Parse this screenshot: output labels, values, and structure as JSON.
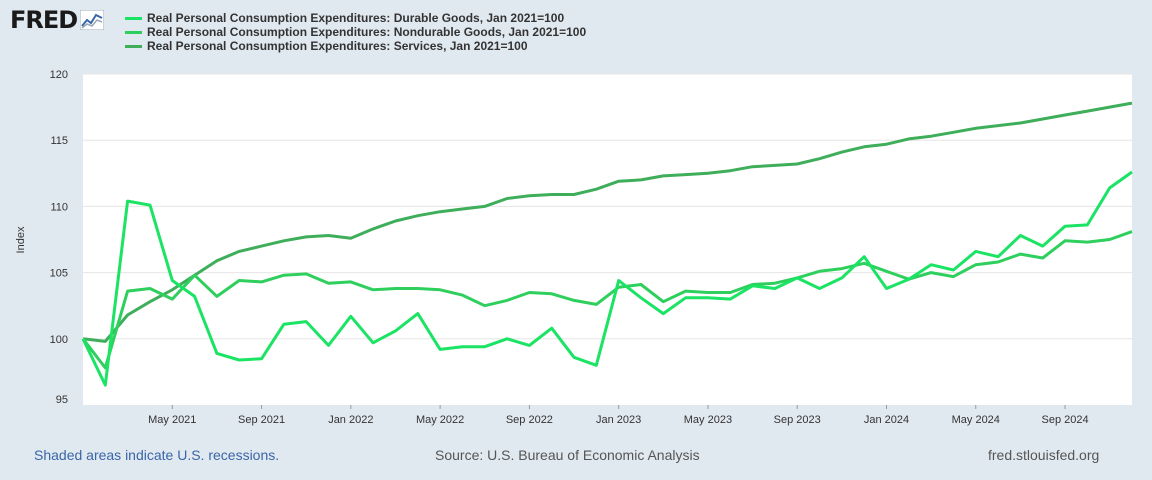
{
  "logo": {
    "text": "FRED",
    "icon": "fred-chart-icon"
  },
  "legend": [
    {
      "label": "Real Personal Consumption Expenditures: Durable Goods, Jan 2021=100",
      "color": "#1be363"
    },
    {
      "label": "Real Personal Consumption Expenditures: Nondurable Goods, Jan 2021=100",
      "color": "#2ecf5c"
    },
    {
      "label": "Real Personal Consumption Expenditures: Services, Jan 2021=100",
      "color": "#3fae5a"
    }
  ],
  "footer": {
    "left": "Shaded areas indicate U.S. recessions.",
    "middle": "Source: U.S. Bureau of Economic Analysis",
    "right": "fred.stlouisfed.org"
  },
  "chart_data": {
    "type": "line",
    "title": "",
    "xlabel": "",
    "ylabel": "Index",
    "ylim": [
      95,
      120
    ],
    "yticks": [
      95,
      100,
      105,
      110,
      115,
      120
    ],
    "xlim": [
      "2021-01",
      "2024-12"
    ],
    "xticks": [
      {
        "month": "2021-05",
        "label": "May 2021"
      },
      {
        "month": "2021-09",
        "label": "Sep 2021"
      },
      {
        "month": "2022-01",
        "label": "Jan 2022"
      },
      {
        "month": "2022-05",
        "label": "May 2022"
      },
      {
        "month": "2022-09",
        "label": "Sep 2022"
      },
      {
        "month": "2023-01",
        "label": "Jan 2023"
      },
      {
        "month": "2023-05",
        "label": "May 2023"
      },
      {
        "month": "2023-09",
        "label": "Sep 2023"
      },
      {
        "month": "2024-01",
        "label": "Jan 2024"
      },
      {
        "month": "2024-05",
        "label": "May 2024"
      },
      {
        "month": "2024-09",
        "label": "Sep 2024"
      }
    ],
    "x_start": "2021-01",
    "grid": true,
    "series": [
      {
        "name": "Durable Goods",
        "color": "#1be363",
        "values": [
          100.0,
          96.5,
          110.4,
          110.1,
          104.4,
          103.2,
          98.9,
          98.4,
          98.5,
          101.1,
          101.3,
          99.5,
          101.7,
          99.7,
          100.6,
          101.9,
          99.2,
          99.4,
          99.4,
          100.0,
          99.5,
          100.8,
          98.6,
          98.0,
          104.4,
          103.1,
          101.9,
          103.1,
          103.1,
          103.0,
          104.0,
          103.8,
          104.6,
          103.8,
          104.6,
          106.2,
          103.8,
          104.5,
          105.6,
          105.2,
          106.6,
          106.2,
          107.8,
          107.0,
          108.5,
          108.6,
          111.4,
          112.6
        ]
      },
      {
        "name": "Nondurable Goods",
        "color": "#2ecf5c",
        "values": [
          100.0,
          97.8,
          103.6,
          103.8,
          103.0,
          104.8,
          103.2,
          104.4,
          104.3,
          104.8,
          104.9,
          104.2,
          104.3,
          103.7,
          103.8,
          103.8,
          103.7,
          103.3,
          102.5,
          102.9,
          103.5,
          103.4,
          102.9,
          102.6,
          103.9,
          104.1,
          102.8,
          103.6,
          103.5,
          103.5,
          104.1,
          104.2,
          104.6,
          105.1,
          105.3,
          105.7,
          105.1,
          104.5,
          105.0,
          104.7,
          105.6,
          105.8,
          106.4,
          106.1,
          107.4,
          107.3,
          107.5,
          108.1
        ]
      },
      {
        "name": "Services",
        "color": "#3fae5a",
        "values": [
          100.0,
          99.8,
          101.8,
          102.8,
          103.7,
          104.8,
          105.9,
          106.6,
          107.0,
          107.4,
          107.7,
          107.8,
          107.6,
          108.3,
          108.9,
          109.3,
          109.6,
          109.8,
          110.0,
          110.6,
          110.8,
          110.9,
          110.9,
          111.3,
          111.9,
          112.0,
          112.3,
          112.4,
          112.5,
          112.7,
          113.0,
          113.1,
          113.2,
          113.6,
          114.1,
          114.5,
          114.7,
          115.1,
          115.3,
          115.6,
          115.9,
          116.1,
          116.3,
          116.6,
          116.9,
          117.2,
          117.5,
          117.8
        ]
      }
    ]
  }
}
